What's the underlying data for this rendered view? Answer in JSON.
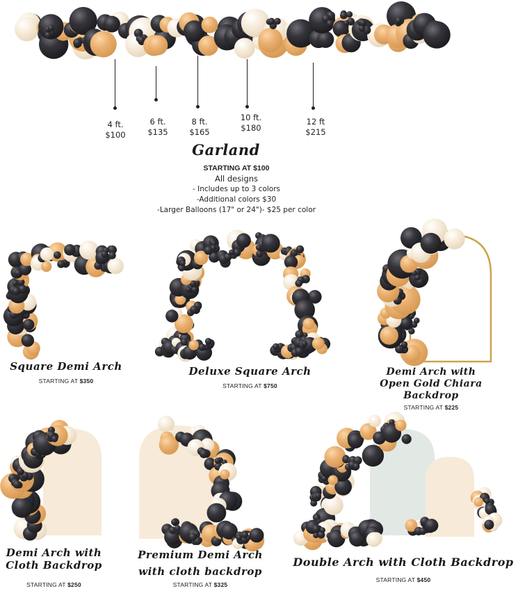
{
  "colors": {
    "black_balloon": "#2b2b2e",
    "gold_balloon": "#e9ad6a",
    "cream_balloon": "#f4e8d6",
    "gold_frame": "#c9a44a",
    "cream_backdrop": "#f7ead8",
    "mint_backdrop": "#e2e8e4"
  },
  "garland_sizes": [
    {
      "size": "4 ft.",
      "price": "$100"
    },
    {
      "size": "6 ft.",
      "price": "$135"
    },
    {
      "size": "8 ft.",
      "price": "$165"
    },
    {
      "size": "10 ft.",
      "price": "$180"
    },
    {
      "size": "12 ft",
      "price": "$215"
    }
  ],
  "garland": {
    "title": "Garland",
    "starting": "STARTING AT $100",
    "line1": "All designs",
    "line2": "- Includes up to 3 colors",
    "line3": "-Additional colors $30",
    "line4": "-Larger Balloons (17\" or 24\")-  $25 per color"
  },
  "products": [
    {
      "name": "Square Demi Arch",
      "starting_label": "STARTING AT",
      "price": "$350"
    },
    {
      "name": "Deluxe Square Arch",
      "starting_label": "STARTING AT",
      "price": "$750"
    },
    {
      "name_line1": "Demi Arch with",
      "name_line2": "Open Gold Chiara",
      "name_line3": "Backdrop",
      "starting_label": "STARTING AT",
      "price": "$225"
    },
    {
      "name_line1": "Demi Arch with",
      "name_line2": "Cloth Backdrop",
      "starting_label": "STARTING AT",
      "price": "$250"
    },
    {
      "name_line1": "Premium Demi Arch",
      "name_line2": "with cloth backdrop",
      "starting_label": "STARTING AT",
      "price": "$325"
    },
    {
      "name": "Double Arch with Cloth Backdrop",
      "starting_label": "STARTING AT",
      "price": "$450"
    }
  ]
}
